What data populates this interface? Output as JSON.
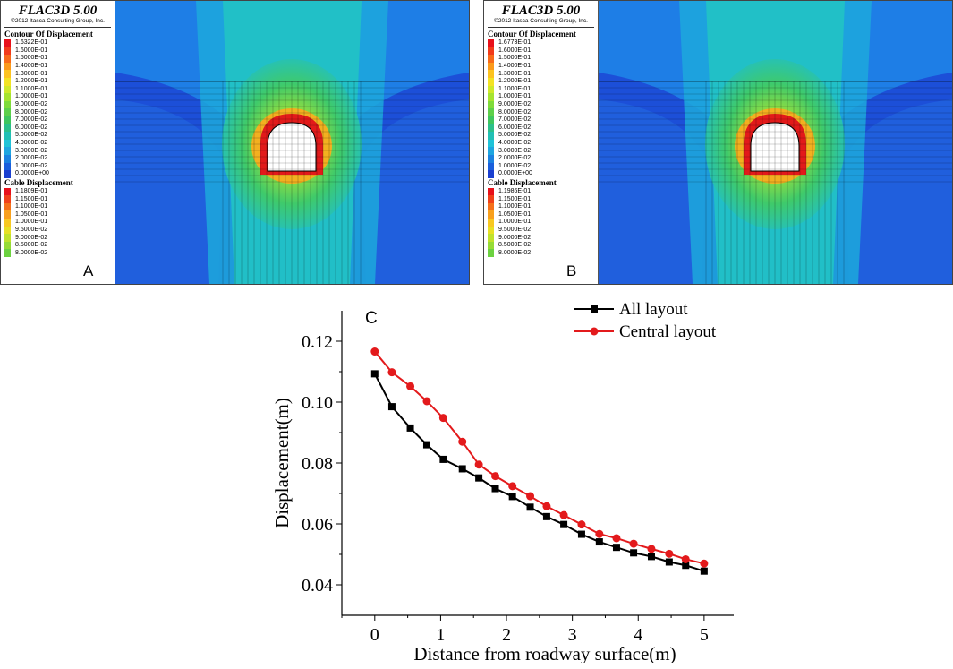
{
  "panels": [
    {
      "id": "A",
      "software_title": "FLAC3D 5.00",
      "copyright": "©2012 Itasca Consulting Group, Inc.",
      "contour_title": "Contour Of Displacement",
      "contour_levels": [
        "1.6322E-01",
        "1.6000E-01",
        "1.5000E-01",
        "1.4000E-01",
        "1.3000E-01",
        "1.2000E-01",
        "1.1000E-01",
        "1.0000E-01",
        "9.0000E-02",
        "8.0000E-02",
        "7.0000E-02",
        "6.0000E-02",
        "5.0000E-02",
        "4.0000E-02",
        "3.0000E-02",
        "2.0000E-02",
        "1.0000E-02",
        "0.0000E+00"
      ],
      "cable_title": "Cable Displacement",
      "cable_levels": [
        "1.1809E-01",
        "1.1500E-01",
        "1.1000E-01",
        "1.0500E-01",
        "1.0000E-01",
        "9.5000E-02",
        "9.0000E-02",
        "8.5000E-02",
        "8.0000E-02"
      ]
    },
    {
      "id": "B",
      "software_title": "FLAC3D 5.00",
      "copyright": "©2012 Itasca Consulting Group, Inc.",
      "contour_title": "Contour Of Displacement",
      "contour_levels": [
        "1.6773E-01",
        "1.6000E-01",
        "1.5000E-01",
        "1.4000E-01",
        "1.3000E-01",
        "1.2000E-01",
        "1.1000E-01",
        "1.0000E-01",
        "9.0000E-02",
        "8.0000E-02",
        "7.0000E-02",
        "6.0000E-02",
        "5.0000E-02",
        "4.0000E-02",
        "3.0000E-02",
        "2.0000E-02",
        "1.0000E-02",
        "0.0000E+00"
      ],
      "cable_title": "Cable Displacement",
      "cable_levels": [
        "1.1986E-01",
        "1.1500E-01",
        "1.1000E-01",
        "1.0500E-01",
        "1.0000E-01",
        "9.5000E-02",
        "9.0000E-02",
        "8.5000E-02",
        "8.0000E-02"
      ]
    }
  ],
  "colors": {
    "contour_scale": [
      "#e8101a",
      "#f23a1a",
      "#f86a1a",
      "#fb9a1c",
      "#fcc320",
      "#f3e324",
      "#cfe92a",
      "#a6e430",
      "#7fdb3a",
      "#5ed04a",
      "#3fc65e",
      "#2cc08a",
      "#22c0b5",
      "#20c3d8",
      "#1ea6e0",
      "#1b82e0",
      "#1a5fdc",
      "#1a3fd0"
    ],
    "cable_scale": [
      "#e8101a",
      "#f0401a",
      "#f5701b",
      "#f8a01d",
      "#f8c821",
      "#e8e025",
      "#c0e22c",
      "#96dc36",
      "#6cd240"
    ],
    "all_layout": "#000000",
    "central_layout": "#e31a1c"
  },
  "chart_data": {
    "type": "line",
    "panel_label": "C",
    "xlabel": "Distance from roadway surface(m)",
    "ylabel": "Displacement(m)",
    "xlim": [
      -0.5,
      5.45
    ],
    "ylim": [
      0.03,
      0.13
    ],
    "xticks": [
      0,
      1,
      2,
      3,
      4,
      5
    ],
    "yticks": [
      0.04,
      0.06,
      0.08,
      0.1,
      0.12
    ],
    "ytick_labels": [
      "0.04",
      "0.06",
      "0.08",
      "0.10",
      "0.12"
    ],
    "legend_position": "top-right",
    "x": [
      0,
      0.26,
      0.54,
      0.79,
      1.04,
      1.33,
      1.58,
      1.83,
      2.09,
      2.36,
      2.61,
      2.87,
      3.14,
      3.41,
      3.67,
      3.93,
      4.2,
      4.47,
      4.72,
      5.0
    ],
    "series": [
      {
        "name": "All layout",
        "marker": "square",
        "values": [
          0.1093,
          0.0985,
          0.0915,
          0.086,
          0.0812,
          0.0781,
          0.0751,
          0.0716,
          0.069,
          0.0655,
          0.0624,
          0.0598,
          0.0566,
          0.0541,
          0.0523,
          0.0505,
          0.0493,
          0.0475,
          0.0464,
          0.0445
        ]
      },
      {
        "name": "Central layout",
        "marker": "circle",
        "values": [
          0.1166,
          0.1098,
          0.1052,
          0.1003,
          0.0948,
          0.087,
          0.0795,
          0.0757,
          0.0724,
          0.0691,
          0.0658,
          0.0629,
          0.0598,
          0.0567,
          0.0553,
          0.0535,
          0.0518,
          0.0502,
          0.0484,
          0.047
        ]
      }
    ]
  }
}
